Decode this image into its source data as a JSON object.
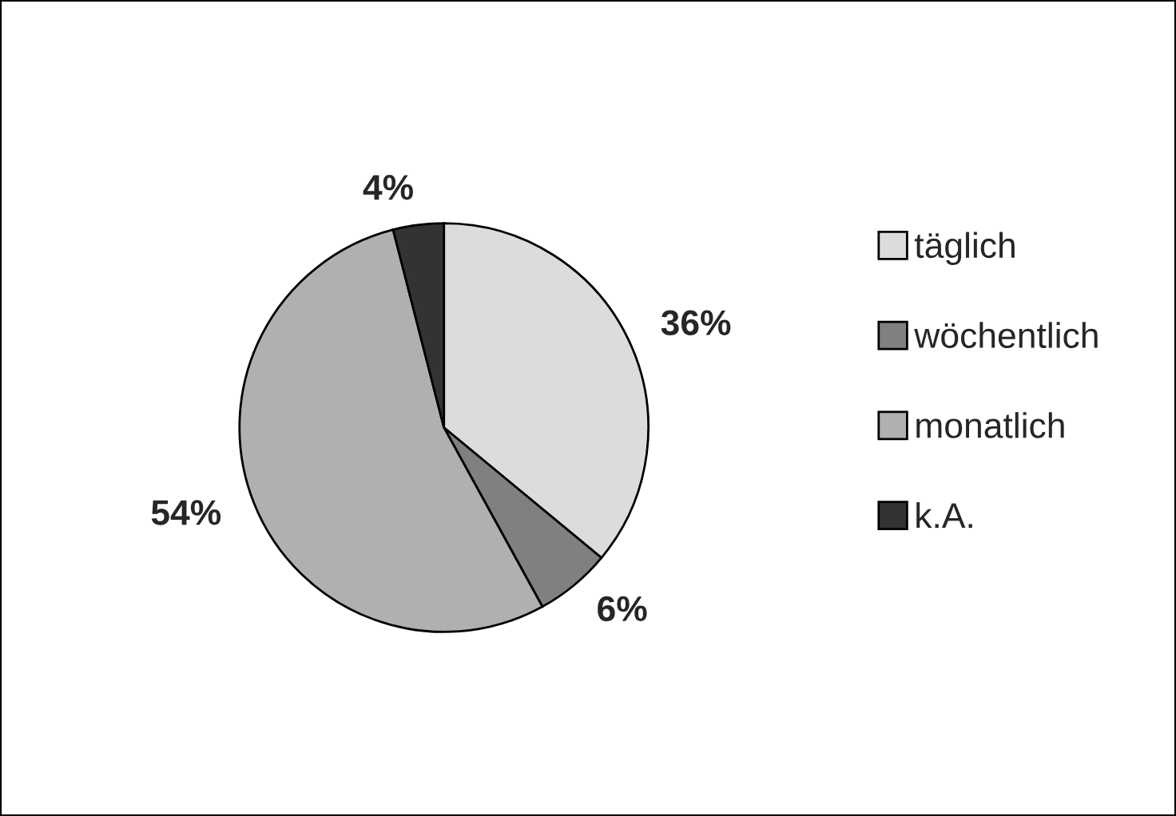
{
  "chart_data": {
    "type": "pie",
    "categories": [
      "täglich",
      "wöchentlich",
      "monatlich",
      "k.A."
    ],
    "values": [
      36,
      6,
      54,
      4
    ],
    "value_labels": [
      "36%",
      "6%",
      "54%",
      "4%"
    ],
    "colors": [
      "#dcdcdc",
      "#808080",
      "#b0b0b0",
      "#333333"
    ],
    "legend": "right"
  }
}
